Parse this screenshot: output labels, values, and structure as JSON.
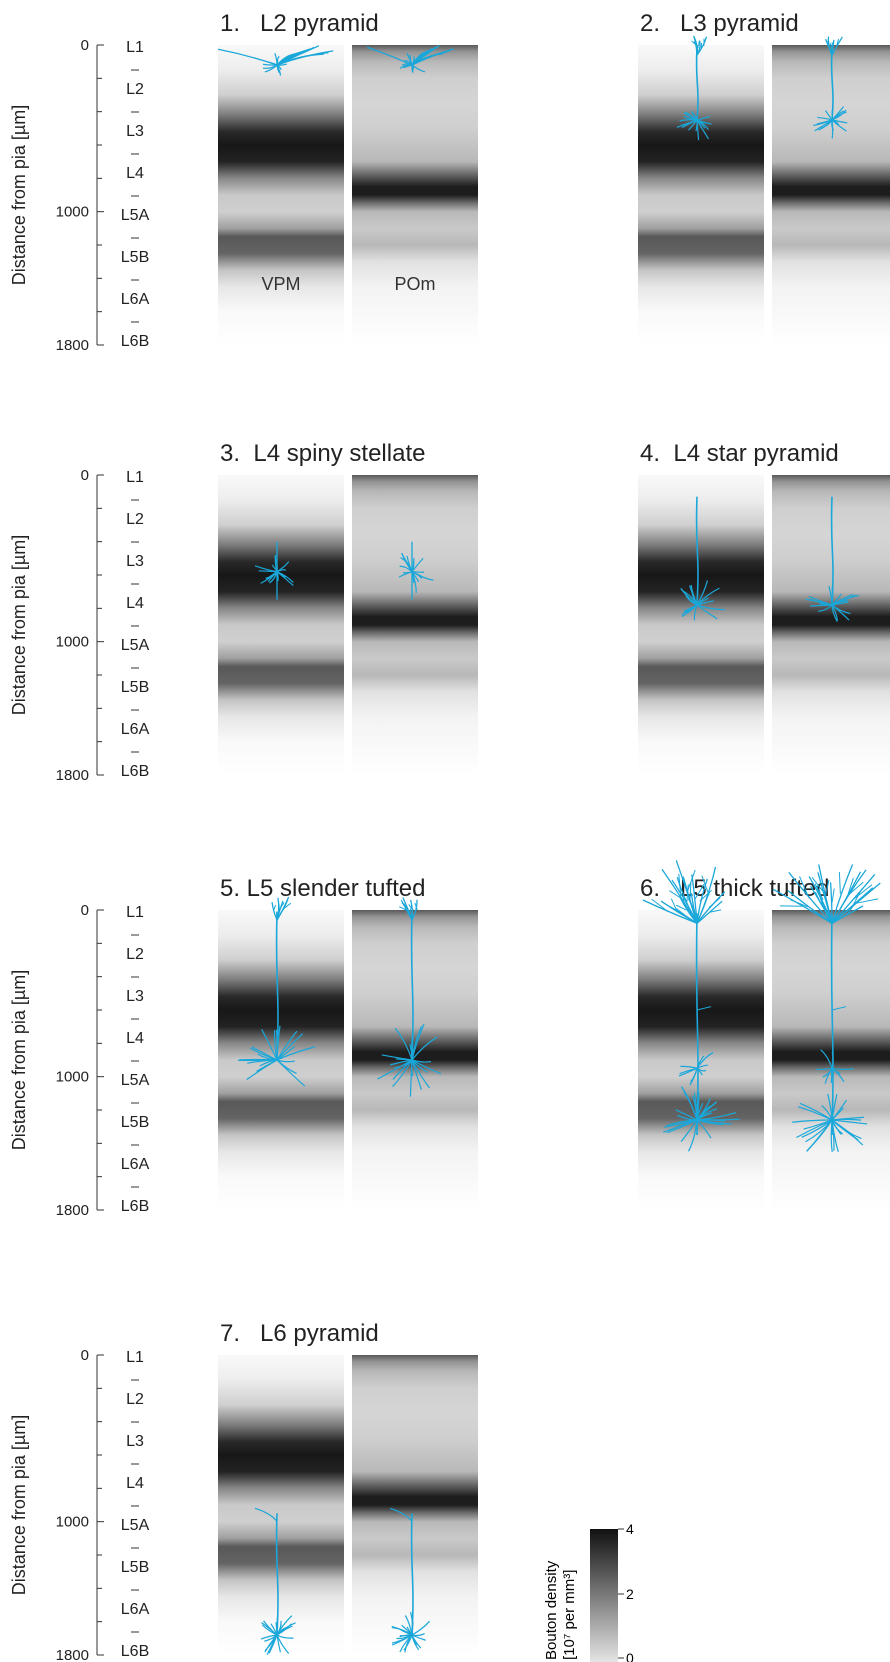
{
  "colorbar": {
    "label_line1": "Bouton density",
    "label_line2": "[10⁷ per mm³]",
    "ticks": [
      "4",
      "2",
      "0"
    ]
  },
  "colors": {
    "dendrite": "#1aa7d9",
    "band_dark": "#111111",
    "background": "#ffffff"
  },
  "chart_data": {
    "type": "heatmap",
    "ylabel": "Distance from pia [µm]",
    "yticks": [
      "0",
      "1000",
      "1800"
    ],
    "ylim": [
      0,
      1800
    ],
    "layers": [
      "L1",
      "L2",
      "L3",
      "L4",
      "L5A",
      "L5B",
      "L6A",
      "L6B"
    ],
    "columns": [
      "VPM",
      "POm"
    ],
    "colorbar_range": [
      0,
      4
    ],
    "vpm_profile": {
      "depth": [
        0,
        150,
        300,
        420,
        520,
        600,
        700,
        800,
        900,
        1000,
        1100,
        1150,
        1250,
        1350,
        1450,
        1600,
        1800
      ],
      "density": [
        0.1,
        0.3,
        0.8,
        2.2,
        3.6,
        3.9,
        3.7,
        2.0,
        0.9,
        0.8,
        1.6,
        2.8,
        2.6,
        1.0,
        0.4,
        0.1,
        0.0
      ]
    },
    "pom_profile": {
      "depth": [
        0,
        40,
        100,
        200,
        350,
        500,
        700,
        780,
        850,
        900,
        950,
        1000,
        1100,
        1200,
        1300,
        1450,
        1800
      ],
      "density": [
        2.8,
        1.8,
        1.2,
        0.8,
        0.7,
        0.8,
        1.2,
        2.6,
        3.8,
        3.8,
        2.4,
        1.2,
        0.9,
        1.2,
        0.5,
        0.2,
        0.0
      ]
    },
    "panels": [
      {
        "title": "1.   L2 pyramid",
        "labels": [
          "VPM",
          "POm"
        ],
        "cell": "l2"
      },
      {
        "title": "2.   L3 pyramid",
        "labels": [
          "",
          ""
        ],
        "cell": "l3"
      },
      {
        "title": "3.  L4 spiny stellate",
        "labels": [
          "",
          ""
        ],
        "cell": "l4ss"
      },
      {
        "title": "4.  L4 star pyramid",
        "labels": [
          "",
          ""
        ],
        "cell": "l4sp"
      },
      {
        "title": "5. L5 slender tufted",
        "labels": [
          "",
          ""
        ],
        "cell": "l5st"
      },
      {
        "title": "6.   L5 thick tufted",
        "labels": [
          "",
          ""
        ],
        "cell": "l5tt"
      },
      {
        "title": "7.   L6 pyramid",
        "labels": [
          "",
          ""
        ],
        "cell": "l6"
      }
    ]
  }
}
